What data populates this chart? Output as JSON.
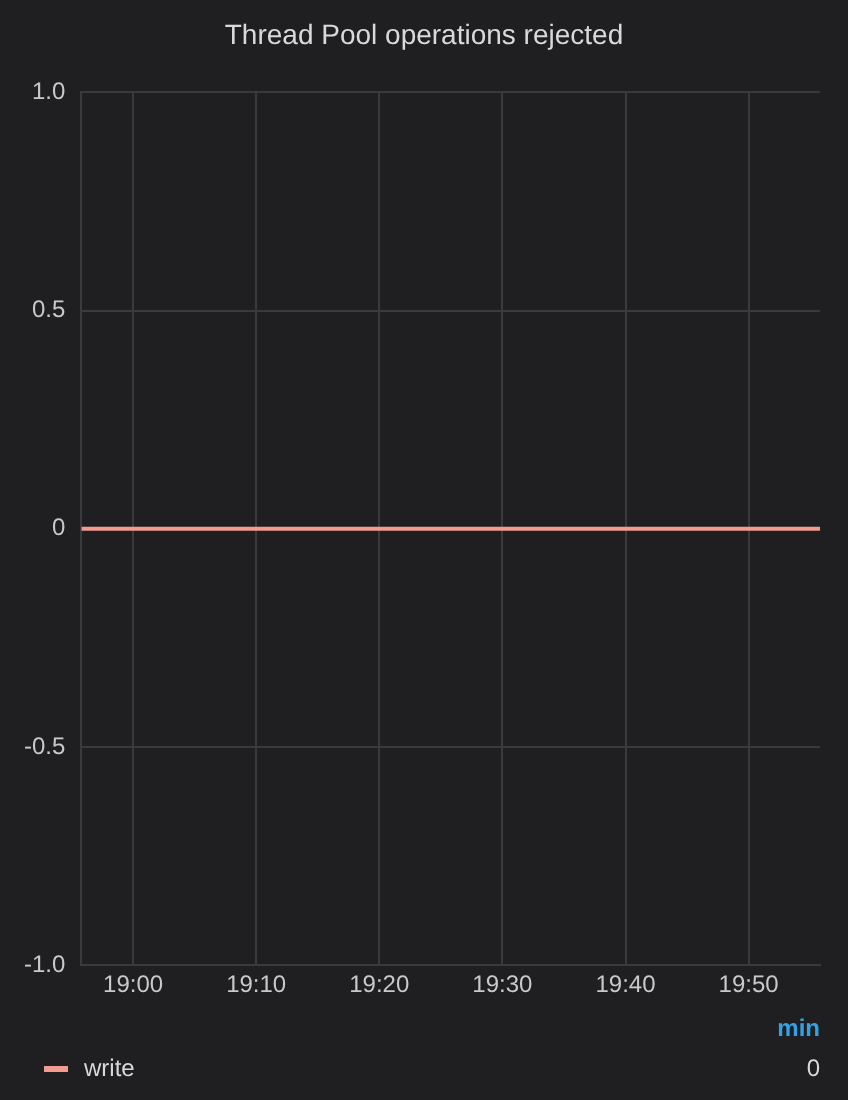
{
  "chart_data": {
    "type": "line",
    "title": "Thread Pool operations rejected",
    "x": [
      18.93,
      19.93
    ],
    "series": [
      {
        "name": "write",
        "color": "#f29c8f",
        "values": [
          0,
          0
        ]
      }
    ],
    "xlim": [
      18.93,
      19.93
    ],
    "xticks": [
      {
        "value": 19,
        "label": "19:00"
      },
      {
        "value": 19.1667,
        "label": "19:10"
      },
      {
        "value": 19.3333,
        "label": "19:20"
      },
      {
        "value": 19.5,
        "label": "19:30"
      },
      {
        "value": 19.6667,
        "label": "19:40"
      },
      {
        "value": 19.8333,
        "label": "19:50"
      }
    ],
    "ylim": [
      -1,
      1
    ],
    "yticks": [
      {
        "value": -1,
        "label": "-1.0"
      },
      -0.5,
      0,
      0.5,
      {
        "value": 1,
        "label": "1.0"
      }
    ],
    "grid": true,
    "legend": "bottom",
    "marker": "none",
    "line_style": "solid",
    "annotations": [
      "min",
      "0"
    ]
  }
}
